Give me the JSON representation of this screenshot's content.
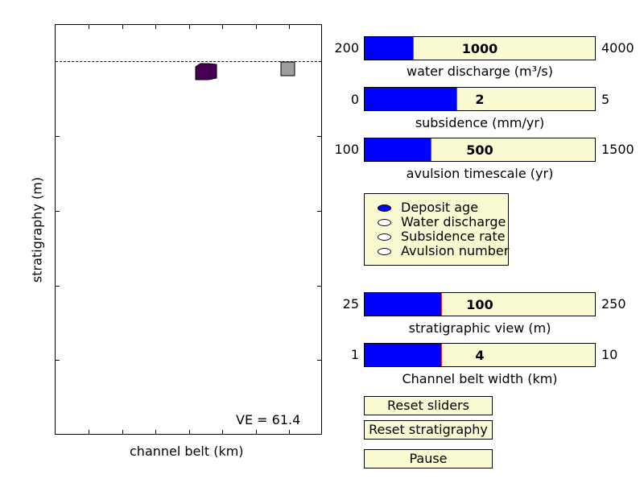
{
  "plot": {
    "ve_label": "VE = 61.4",
    "ylabel": "stratigraphy (m)",
    "xlabel": "channel belt (km)",
    "deposit_colors": [
      "#440154",
      "#9e9e9e"
    ]
  },
  "sliders": [
    {
      "label": "water discharge (m³/s)",
      "min": "200",
      "max": "4000",
      "value": "1000",
      "fraction": 0.21
    },
    {
      "label": "subsidence (mm/yr)",
      "min": "0",
      "max": "5",
      "value": "2",
      "fraction": 0.4
    },
    {
      "label": "avulsion timescale (yr)",
      "min": "100",
      "max": "1500",
      "value": "500",
      "fraction": 0.286
    },
    {
      "label": "stratigraphic view (m)",
      "min": "25",
      "max": "250",
      "value": "100",
      "fraction": 0.333
    },
    {
      "label": "Channel belt width (km)",
      "min": "1",
      "max": "10",
      "value": "4",
      "fraction": 0.333
    }
  ],
  "radio": {
    "options": [
      "Deposit age",
      "Water discharge",
      "Subsidence rate",
      "Avulsion number"
    ],
    "selected": "Deposit age"
  },
  "buttons": {
    "reset_sliders": "Reset sliders",
    "reset_stratigraphy": "Reset stratigraphy",
    "pause": "Pause"
  },
  "colors": {
    "slider_fill": "#0000ff",
    "widget_bg": "#fafad2",
    "knob": "#e53030"
  }
}
